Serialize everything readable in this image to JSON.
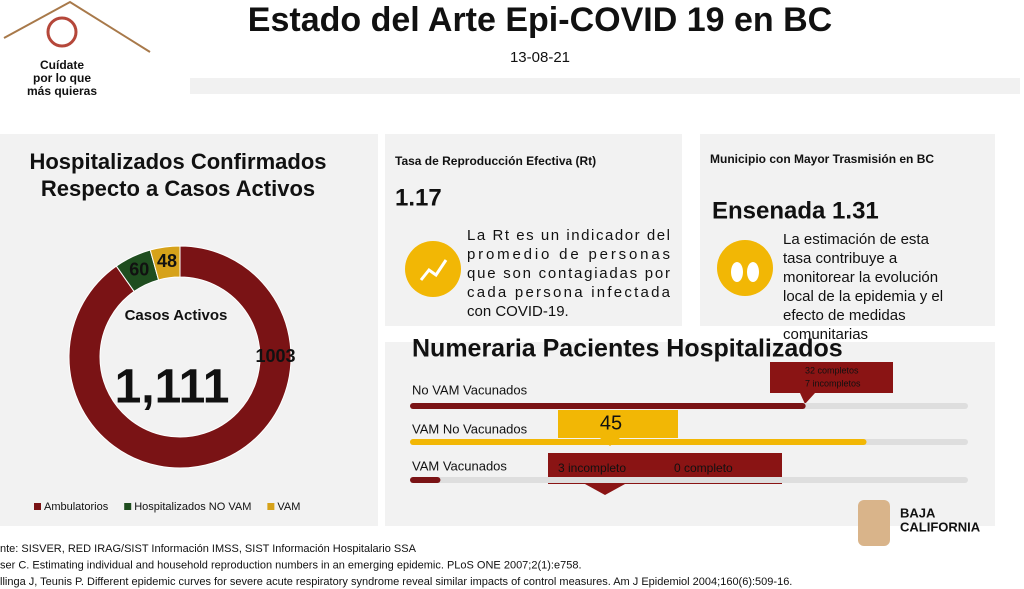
{
  "header": {
    "logo_lines": [
      "Cuídate",
      "por lo que",
      "más quieras"
    ],
    "title": "Estado del Arte Epi-COVID 19 en BC",
    "date": "13-08-21"
  },
  "donut_panel": {
    "title_lines": [
      "Hospitalizados Confirmados",
      "Respecto a Casos Activos"
    ],
    "center_label": "Casos Activos",
    "center_total": "1,111",
    "series": [
      {
        "name": "Ambulatorios",
        "color": "#7a1315",
        "value": 1003
      },
      {
        "name": "Hospitalizados NO VAM",
        "color": "#1f4d1f",
        "value": 60
      },
      {
        "name": "VAM",
        "color": "#d6a21a",
        "value": 48
      }
    ]
  },
  "rt_panel": {
    "title": "Tasa de Reproducción Efectiva (Rt)",
    "value": 1.17,
    "text_lines": [
      "La Rt es un indicador del",
      "promedio de personas",
      "que son contagiadas por",
      "cada persona infectada",
      "con COVID-19."
    ]
  },
  "municipio_panel": {
    "title": "Municipio con Mayor Trasmisión en BC",
    "headline": "Ensenada 1.31",
    "text_lines": [
      "La estimación de esta",
      "tasa contribuye a",
      "monitorear la evolución",
      "local de la epidemia y el",
      "efecto de medidas",
      "comunitarias"
    ]
  },
  "hospital_panel": {
    "title": "Numeraria Pacientes Hospitalizados",
    "xlim": [
      0,
      55
    ],
    "rows": [
      {
        "name": "No VAM Vacunados",
        "value": 39,
        "color": "#7a1315",
        "callout": [
          "32  completos",
          "7 incompletos"
        ]
      },
      {
        "name": "VAM No Vacunados",
        "value": 45,
        "color": "#f2b705"
      },
      {
        "name": "VAM Vacunados",
        "value": 3,
        "color": "#7a1315",
        "callout": [
          "3 incompleto",
          "0 completo"
        ]
      }
    ]
  },
  "footer": {
    "sources": [
      "nte: SISVER, RED IRAG/SIST Información IMSS, SIST Información Hospitalario SSA",
      "ser C. Estimating individual and household reproduction numbers in an emerging epidemic. PLoS ONE 2007;2(1):e758.",
      "llinga J, Teunis P. Different epidemic curves for severe acute respiratory syndrome reveal similar impacts of control measures. Am J Epidemiol 2004;160(6):509-16."
    ]
  },
  "brand": [
    "BAJA",
    "CALIFORNIA"
  ]
}
